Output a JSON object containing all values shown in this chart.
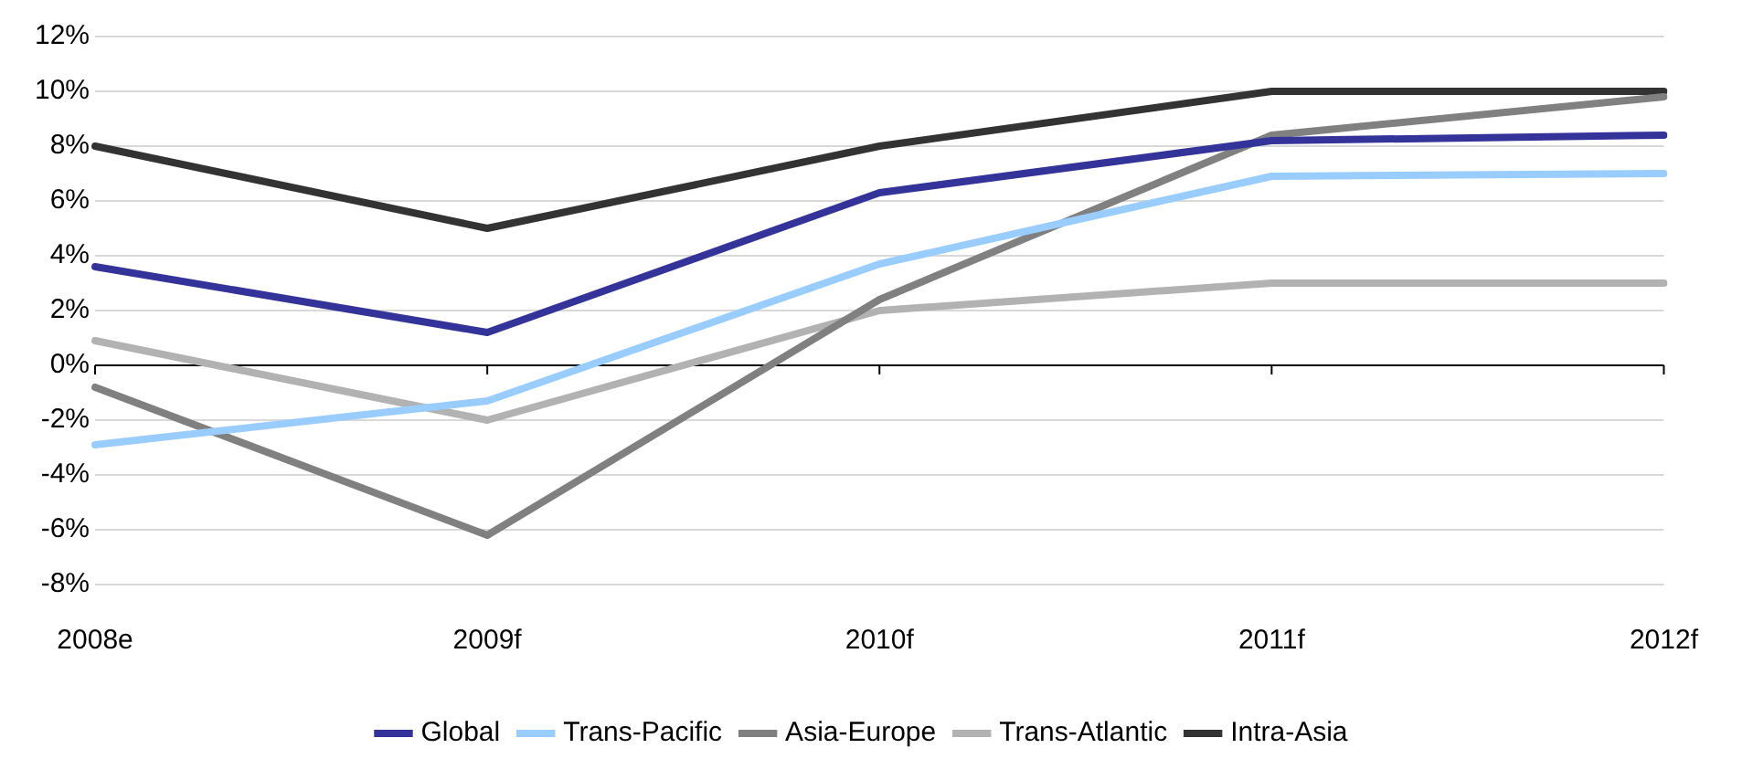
{
  "chart_data": {
    "type": "line",
    "categories": [
      "2008e",
      "2009f",
      "2010f",
      "2011f",
      "2012f"
    ],
    "series": [
      {
        "name": "Global",
        "color": "#333399",
        "values": [
          3.6,
          1.2,
          6.3,
          8.2,
          8.4
        ]
      },
      {
        "name": "Trans-Pacific",
        "color": "#99ccff",
        "values": [
          -2.9,
          -1.3,
          3.7,
          6.9,
          7.0
        ]
      },
      {
        "name": "Asia-Europe",
        "color": "#808080",
        "values": [
          -0.8,
          -6.2,
          2.4,
          8.4,
          9.8
        ]
      },
      {
        "name": "Trans-Atlantic",
        "color": "#b2b2b2",
        "values": [
          0.9,
          -2.0,
          2.0,
          3.0,
          3.0
        ]
      },
      {
        "name": "Intra-Asia",
        "color": "#333333",
        "values": [
          8,
          5,
          8,
          10,
          10
        ]
      }
    ],
    "ylim": [
      -8,
      12
    ],
    "yticks": [
      {
        "value": -8,
        "label": "-8%"
      },
      {
        "value": -6,
        "label": "-6%"
      },
      {
        "value": -4,
        "label": "-4%"
      },
      {
        "value": -2,
        "label": "-2%"
      },
      {
        "value": 0,
        "label": "0%"
      },
      {
        "value": 2,
        "label": "2%"
      },
      {
        "value": 4,
        "label": "4%"
      },
      {
        "value": 6,
        "label": "6%"
      },
      {
        "value": 8,
        "label": "8%"
      },
      {
        "value": 10,
        "label": "10%"
      },
      {
        "value": 12,
        "label": "12%"
      }
    ],
    "grid": "y",
    "legend": "bottom",
    "marker": "none",
    "line_style": "solid"
  }
}
